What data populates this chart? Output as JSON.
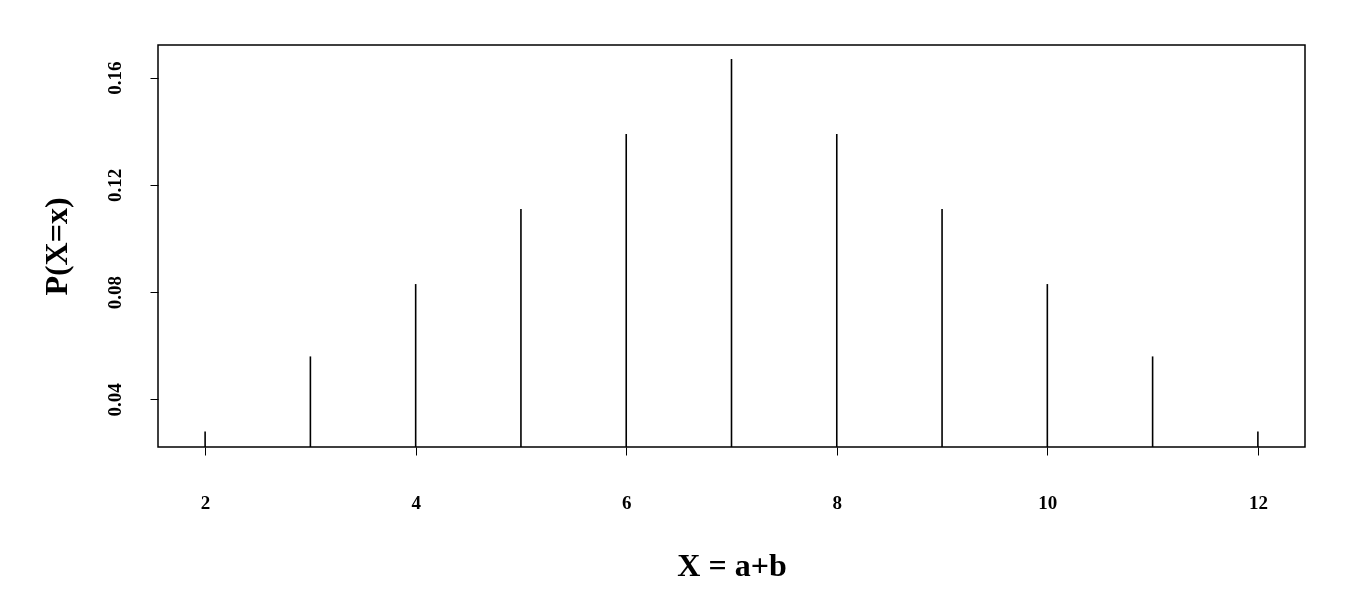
{
  "chart_data": {
    "type": "bar",
    "xlabel": "X = a+b",
    "ylabel": "P(X=x)",
    "x": [
      2,
      3,
      4,
      5,
      6,
      7,
      8,
      9,
      10,
      11,
      12
    ],
    "values": [
      0.028,
      0.056,
      0.083,
      0.111,
      0.139,
      0.167,
      0.139,
      0.111,
      0.083,
      0.056,
      0.028
    ],
    "color": "#000000",
    "xlim": [
      1.6,
      12.4
    ],
    "xticks": [
      2,
      4,
      6,
      8,
      10,
      12
    ],
    "ylim": [
      0.0222,
      0.1722
    ],
    "yticks": [
      0.04,
      0.08,
      0.12,
      0.16
    ],
    "grid": false
  }
}
